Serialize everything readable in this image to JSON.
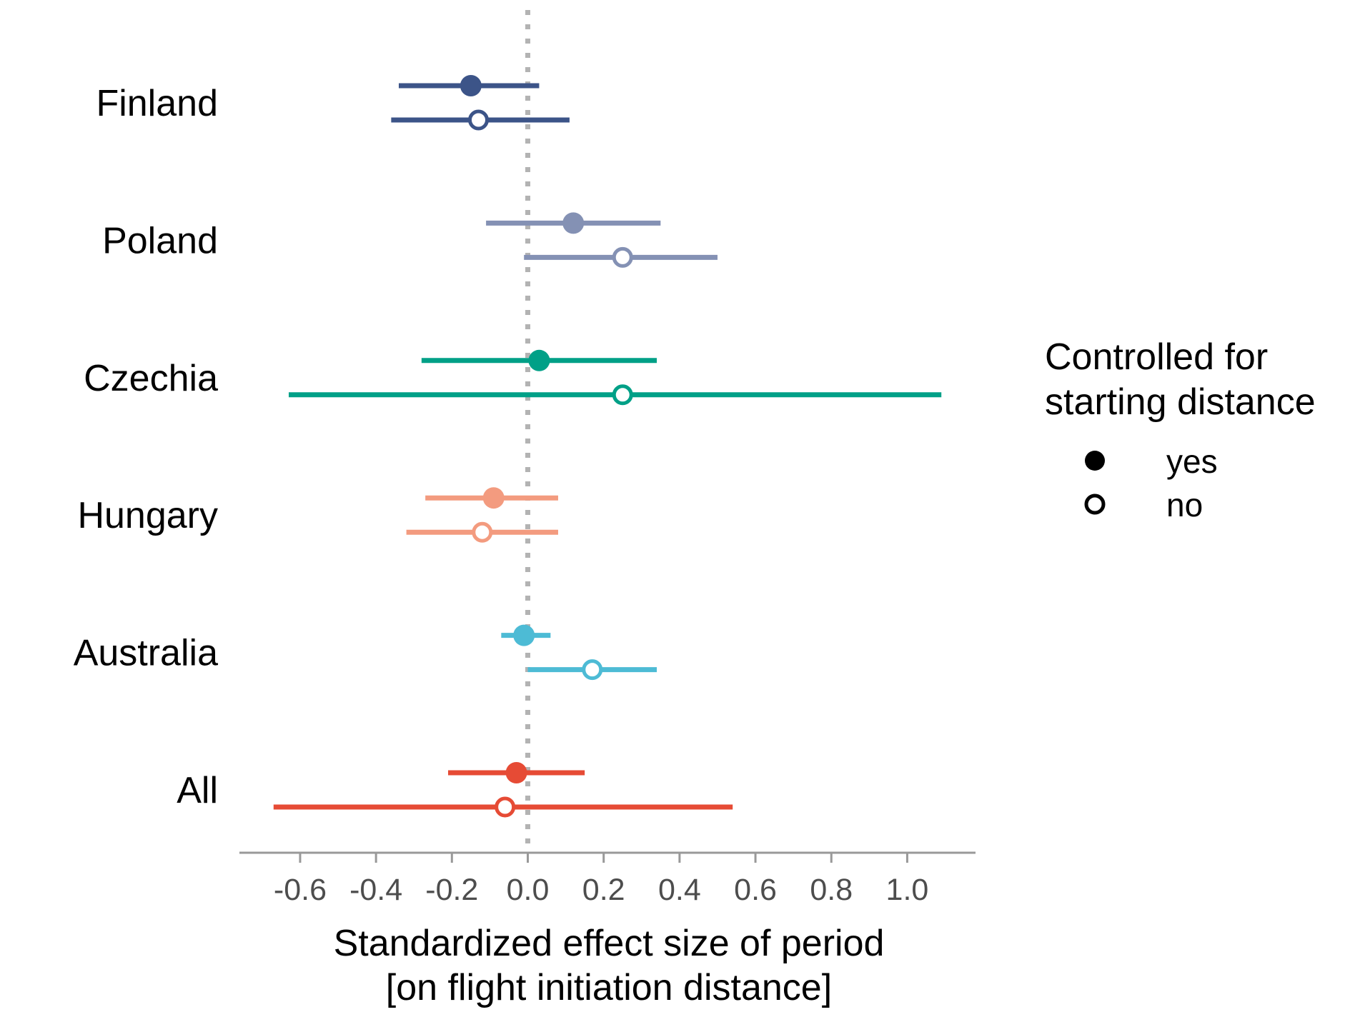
{
  "chart_data": {
    "type": "forest",
    "xlabel": [
      "Standardized effect size of period",
      "[on flight initiation distance]"
    ],
    "xticks": [
      -0.6,
      -0.4,
      -0.2,
      0.0,
      0.2,
      0.4,
      0.6,
      0.8,
      1.0
    ],
    "xtick_labels": [
      "-0.6",
      "-0.4",
      "-0.2",
      "0.0",
      "0.2",
      "0.4",
      "0.6",
      "0.8",
      "1.0"
    ],
    "xlim": [
      -0.76,
      1.18
    ],
    "reference_line": 0.0,
    "legend": {
      "title": [
        "Controlled for",
        "starting distance"
      ],
      "entries": [
        {
          "label": "yes",
          "marker": "filled"
        },
        {
          "label": "no",
          "marker": "open"
        }
      ]
    },
    "groups": [
      {
        "name": "Finland",
        "color": "#3c5488",
        "yes": {
          "estimate": -0.15,
          "lower": -0.34,
          "upper": 0.03
        },
        "no": {
          "estimate": -0.13,
          "lower": -0.36,
          "upper": 0.11
        }
      },
      {
        "name": "Poland",
        "color": "#8491b4",
        "yes": {
          "estimate": 0.12,
          "lower": -0.11,
          "upper": 0.35
        },
        "no": {
          "estimate": 0.25,
          "lower": -0.01,
          "upper": 0.5
        }
      },
      {
        "name": "Czechia",
        "color": "#00a087",
        "yes": {
          "estimate": 0.03,
          "lower": -0.28,
          "upper": 0.34
        },
        "no": {
          "estimate": 0.25,
          "lower": -0.63,
          "upper": 1.09
        }
      },
      {
        "name": "Hungary",
        "color": "#f39b7f",
        "yes": {
          "estimate": -0.09,
          "lower": -0.27,
          "upper": 0.08
        },
        "no": {
          "estimate": -0.12,
          "lower": -0.32,
          "upper": 0.08
        }
      },
      {
        "name": "Australia",
        "color": "#4dbbd5",
        "yes": {
          "estimate": -0.01,
          "lower": -0.07,
          "upper": 0.06
        },
        "no": {
          "estimate": 0.17,
          "lower": 0.0,
          "upper": 0.34
        }
      },
      {
        "name": "All",
        "color": "#e64b35",
        "yes": {
          "estimate": -0.03,
          "lower": -0.21,
          "upper": 0.15
        },
        "no": {
          "estimate": -0.06,
          "lower": -0.67,
          "upper": 0.54
        }
      }
    ]
  }
}
